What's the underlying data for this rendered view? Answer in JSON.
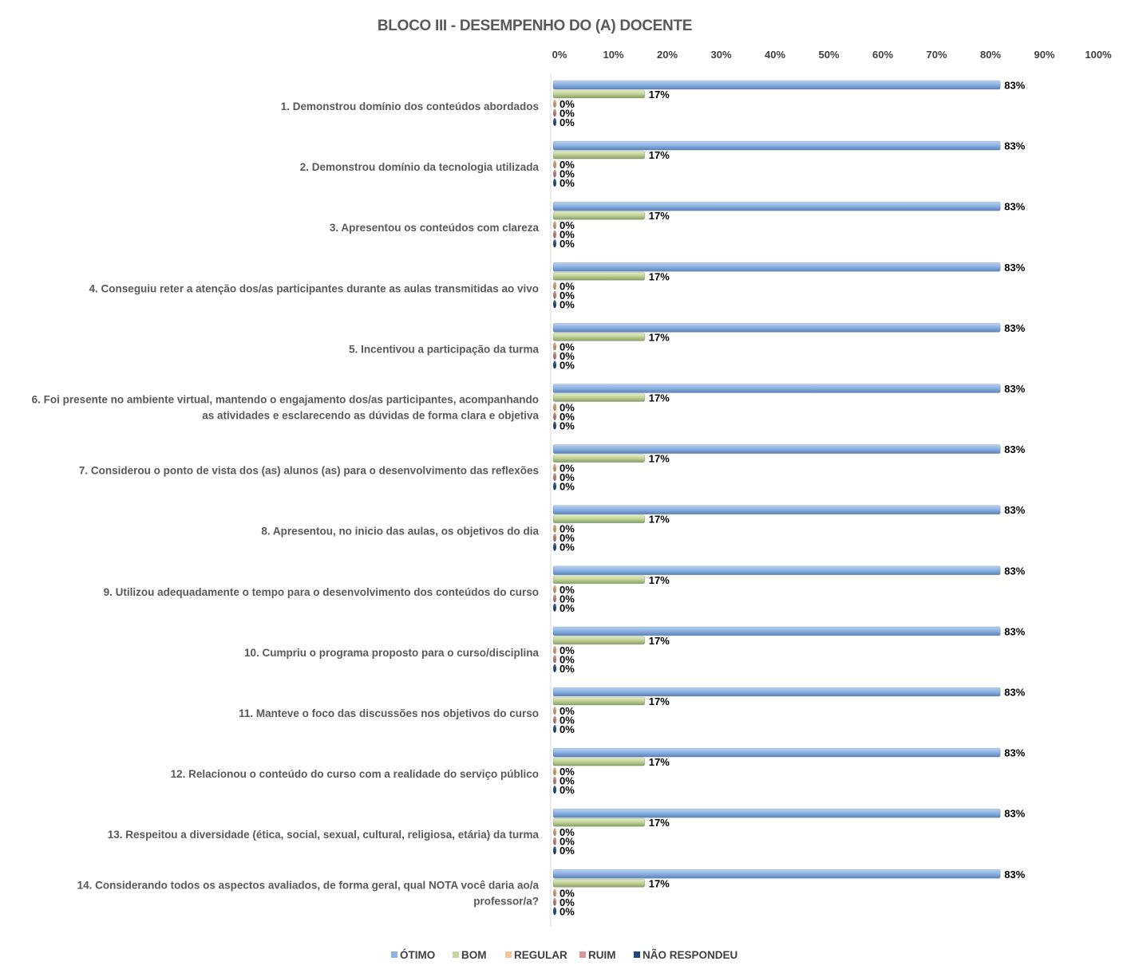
{
  "chart_data": {
    "type": "bar",
    "orientation": "horizontal",
    "title": "BLOCO III - DESEMPENHO DO (A) DOCENTE",
    "xlabel": "",
    "ylabel": "",
    "xlim": [
      0,
      100
    ],
    "x_ticks": [
      "0%",
      "10%",
      "20%",
      "30%",
      "40%",
      "50%",
      "60%",
      "70%",
      "80%",
      "90%",
      "100%"
    ],
    "x_axis_position": "top",
    "grid": false,
    "legend_position": "bottom",
    "categories": [
      "1. Demonstrou domínio dos conteúdos abordados",
      "2. Demonstrou domínio da tecnologia utilizada",
      "3. Apresentou os conteúdos com clareza",
      "4. Conseguiu reter a atenção dos/as participantes durante as aulas transmitidas ao vivo",
      "5. Incentivou a participação da turma",
      "6. Foi presente no ambiente virtual, mantendo o engajamento dos/as participantes, acompanhando as atividades e esclarecendo as dúvidas de forma clara e objetiva",
      "7. Considerou o ponto de vista dos (as) alunos (as) para o desenvolvimento das reflexões",
      "8. Apresentou, no inicio das aulas, os objetivos do dia",
      "9. Utilizou adequadamente o tempo para o desenvolvimento dos conteúdos do curso",
      "10. Cumpriu o programa proposto para o curso/disciplina",
      "11. Manteve o foco das discussões nos objetivos do curso",
      "12. Relacionou o conteúdo do curso com a realidade do serviço público",
      "13. Respeitou a diversidade (ética, social, sexual, cultural, religiosa, etária) da turma",
      "14. Considerando todos os aspectos avaliados, de forma geral, qual NOTA você daria ao/a professor/a?"
    ],
    "category_lines": [
      [
        "1. Demonstrou domínio dos conteúdos abordados"
      ],
      [
        "2. Demonstrou domínio da tecnologia utilizada"
      ],
      [
        "3. Apresentou os conteúdos com clareza"
      ],
      [
        "4. Conseguiu reter a atenção dos/as participantes durante as aulas transmitidas ao vivo"
      ],
      [
        "5. Incentivou a participação da turma"
      ],
      [
        "6. Foi presente no ambiente virtual, mantendo o engajamento dos/as participantes, acompanhando",
        "as atividades e esclarecendo as dúvidas de forma clara e objetiva"
      ],
      [
        "7. Considerou o ponto de vista dos (as) alunos (as) para o desenvolvimento das reflexões"
      ],
      [
        "8. Apresentou, no inicio das aulas, os objetivos do dia"
      ],
      [
        "9. Utilizou adequadamente o tempo para o desenvolvimento dos conteúdos do curso"
      ],
      [
        "10. Cumpriu o programa proposto para o curso/disciplina"
      ],
      [
        "11. Manteve o foco das discussões nos objetivos do curso"
      ],
      [
        "12. Relacionou o conteúdo do curso com a realidade do serviço público"
      ],
      [
        "13. Respeitou a diversidade (ética, social, sexual, cultural, religiosa, etária) da turma"
      ],
      [
        "14. Considerando todos os aspectos avaliados, de forma geral, qual NOTA você daria ao/a",
        "professor/a?"
      ]
    ],
    "series": [
      {
        "name": "ÓTIMO",
        "color": "#8EB4E3",
        "values": [
          83,
          83,
          83,
          83,
          83,
          83,
          83,
          83,
          83,
          83,
          83,
          83,
          83,
          83
        ],
        "labels": [
          "83%",
          "83%",
          "83%",
          "83%",
          "83%",
          "83%",
          "83%",
          "83%",
          "83%",
          "83%",
          "83%",
          "83%",
          "83%",
          "83%"
        ]
      },
      {
        "name": "BOM",
        "color": "#C3D69B",
        "values": [
          17,
          17,
          17,
          17,
          17,
          17,
          17,
          17,
          17,
          17,
          17,
          17,
          17,
          17
        ],
        "labels": [
          "17%",
          "17%",
          "17%",
          "17%",
          "17%",
          "17%",
          "17%",
          "17%",
          "17%",
          "17%",
          "17%",
          "17%",
          "17%",
          "17%"
        ]
      },
      {
        "name": "REGULAR",
        "color": "#FAC090",
        "values": [
          0,
          0,
          0,
          0,
          0,
          0,
          0,
          0,
          0,
          0,
          0,
          0,
          0,
          0
        ],
        "labels": [
          "0%",
          "0%",
          "0%",
          "0%",
          "0%",
          "0%",
          "0%",
          "0%",
          "0%",
          "0%",
          "0%",
          "0%",
          "0%",
          "0%"
        ]
      },
      {
        "name": "RUIM",
        "color": "#D99694",
        "values": [
          0,
          0,
          0,
          0,
          0,
          0,
          0,
          0,
          0,
          0,
          0,
          0,
          0,
          0
        ],
        "labels": [
          "0%",
          "0%",
          "0%",
          "0%",
          "0%",
          "0%",
          "0%",
          "0%",
          "0%",
          "0%",
          "0%",
          "0%",
          "0%",
          "0%"
        ]
      },
      {
        "name": "NÃO RESPONDEU",
        "color": "#1F497D",
        "values": [
          0,
          0,
          0,
          0,
          0,
          0,
          0,
          0,
          0,
          0,
          0,
          0,
          0,
          0
        ],
        "labels": [
          "0%",
          "0%",
          "0%",
          "0%",
          "0%",
          "0%",
          "0%",
          "0%",
          "0%",
          "0%",
          "0%",
          "0%",
          "0%",
          "0%"
        ]
      }
    ]
  }
}
